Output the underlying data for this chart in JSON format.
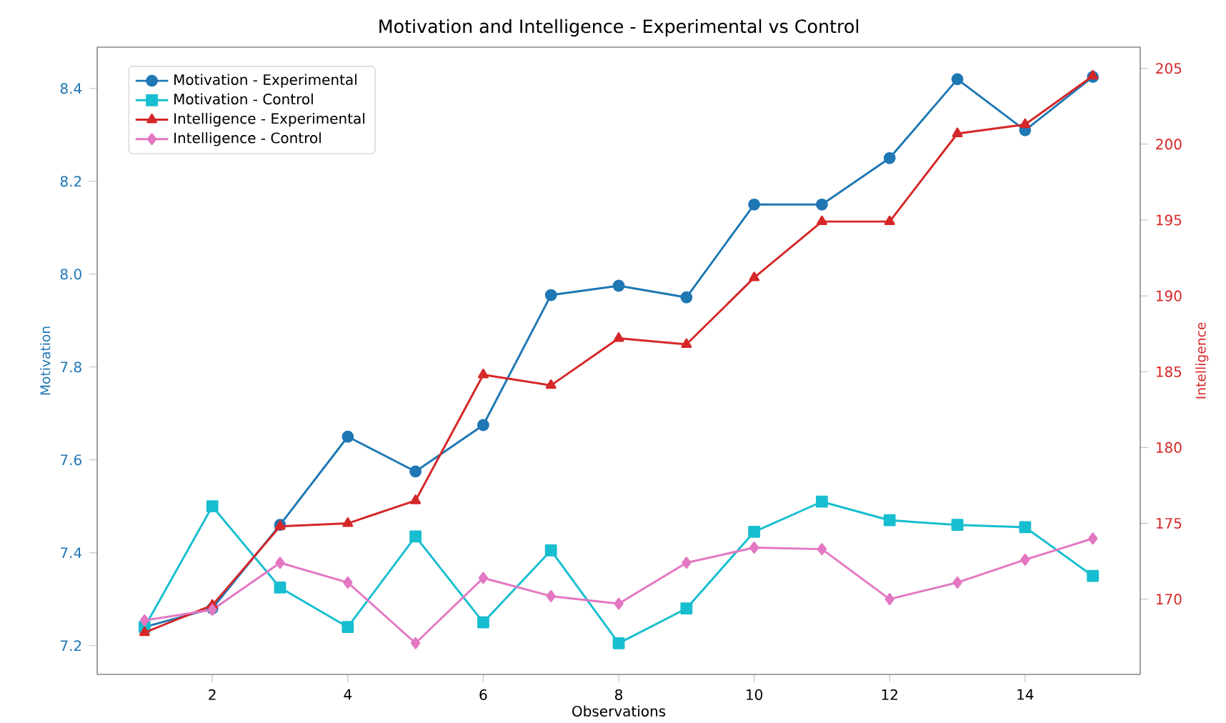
{
  "chart_data": {
    "type": "line",
    "title": "Motivation and Intelligence - Experimental vs Control",
    "xlabel": "Observations",
    "ylabel": "Motivation",
    "y2label": "Intelligence",
    "x": [
      1,
      2,
      3,
      4,
      5,
      6,
      7,
      8,
      9,
      10,
      11,
      12,
      13,
      14,
      15
    ],
    "series": [
      {
        "name": "Motivation - Experimental",
        "color": "#1f77b4",
        "marker": "circle",
        "values": [
          7.24,
          7.28,
          7.46,
          7.65,
          7.575,
          7.675,
          7.955,
          7.975,
          7.95,
          8.15,
          8.15,
          8.25,
          8.42,
          8.31,
          8.425
        ]
      },
      {
        "name": "Motivation - Control",
        "color": "#17becf",
        "marker": "square",
        "values": [
          7.24,
          7.5,
          7.325,
          7.24,
          7.435,
          7.25,
          7.405,
          7.205,
          7.28,
          7.445,
          7.51,
          7.47,
          7.46,
          7.455,
          7.35
        ]
      },
      {
        "name": "Intelligence - Experimental",
        "color": "#d62728",
        "marker": "triangle",
        "axis": "y2",
        "values": [
          167.8,
          169.6,
          174.8,
          175.0,
          176.5,
          184.8,
          184.1,
          187.2,
          186.8,
          191.2,
          194.9,
          194.9,
          200.7,
          201.3,
          204.5
        ]
      },
      {
        "name": "Intelligence - Control",
        "color": "#e377c2",
        "marker": "diamond",
        "axis": "y2",
        "values": [
          168.6,
          169.3,
          172.4,
          171.1,
          167.1,
          171.4,
          170.2,
          169.7,
          172.4,
          173.4,
          173.3,
          170.0,
          171.1,
          172.6,
          174.0
        ]
      }
    ],
    "xlim": [
      0.3,
      15.7
    ],
    "xticks": [
      2,
      4,
      6,
      8,
      10,
      12,
      14
    ],
    "ylim": [
      7.138,
      8.489
    ],
    "yticks": [
      7.2,
      7.4,
      7.6,
      7.8,
      {
        "value": 8,
        "label": "8.0"
      },
      8.2,
      8.4
    ],
    "y2lim": [
      165.04,
      206.4
    ],
    "y2ticks": [
      170,
      175,
      180,
      185,
      190,
      195,
      200,
      205
    ],
    "legend": "top left",
    "line_style": "solid"
  }
}
